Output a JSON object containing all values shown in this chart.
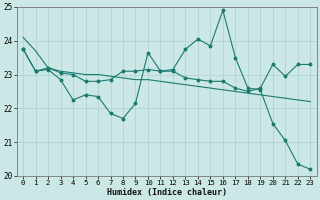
{
  "xlabel": "Humidex (Indice chaleur)",
  "xlim": [
    -0.5,
    23.5
  ],
  "ylim": [
    20,
    25
  ],
  "yticks": [
    20,
    21,
    22,
    23,
    24,
    25
  ],
  "xticks": [
    0,
    1,
    2,
    3,
    4,
    5,
    6,
    7,
    8,
    9,
    10,
    11,
    12,
    13,
    14,
    15,
    16,
    17,
    18,
    19,
    20,
    21,
    22,
    23
  ],
  "bg_color": "#cce8e6",
  "grid_color": "#b0d4d0",
  "line_color": "#1a7a6e",
  "line1_x": [
    0,
    1,
    2,
    3,
    4,
    5,
    6,
    7,
    8,
    9,
    10,
    11,
    12,
    13,
    14,
    15,
    16,
    17,
    18,
    19,
    20,
    21,
    22,
    23
  ],
  "line1_y": [
    23.75,
    23.1,
    23.15,
    22.85,
    22.25,
    22.4,
    22.35,
    21.85,
    21.7,
    22.15,
    23.65,
    23.1,
    23.15,
    23.75,
    24.05,
    23.85,
    24.9,
    23.5,
    22.6,
    22.55,
    21.55,
    21.05,
    20.35,
    20.2
  ],
  "line2_x": [
    0,
    1,
    2,
    3,
    4,
    5,
    6,
    7,
    8,
    9,
    10,
    11,
    12,
    13,
    14,
    15,
    16,
    17,
    18,
    19,
    20,
    21,
    22,
    23
  ],
  "line2_y": [
    24.1,
    23.7,
    23.2,
    23.1,
    23.05,
    23.0,
    23.0,
    22.95,
    22.9,
    22.85,
    22.85,
    22.8,
    22.75,
    22.7,
    22.65,
    22.6,
    22.55,
    22.5,
    22.45,
    22.4,
    22.35,
    22.3,
    22.25,
    22.2
  ],
  "line3_x": [
    0,
    1,
    2,
    3,
    4,
    5,
    6,
    7,
    8,
    9,
    10,
    11,
    12,
    13,
    14,
    15,
    16,
    17,
    18,
    19,
    20,
    21,
    22,
    23
  ],
  "line3_y": [
    23.75,
    23.1,
    23.2,
    23.05,
    23.0,
    22.8,
    22.8,
    22.85,
    23.1,
    23.1,
    23.15,
    23.1,
    23.1,
    22.9,
    22.85,
    22.8,
    22.8,
    22.6,
    22.5,
    22.6,
    23.3,
    22.95,
    23.3,
    23.3
  ]
}
